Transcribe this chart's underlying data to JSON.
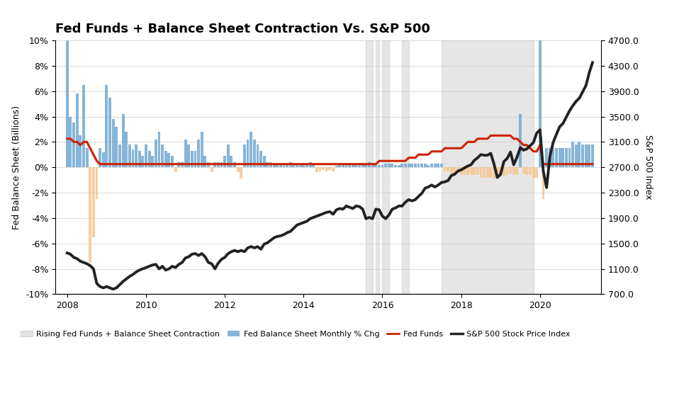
{
  "title": "Fed Funds + Balance Sheet Contraction Vs. S&P 500",
  "ylabel_left": "Fed Balance Sheet (Billions)",
  "ylabel_right": "S&P 500 Index",
  "ylim_left": [
    -0.1,
    0.1
  ],
  "ylim_right": [
    700,
    4700
  ],
  "yticks_left": [
    -0.1,
    -0.08,
    -0.06,
    -0.04,
    -0.02,
    0.0,
    0.02,
    0.04,
    0.06,
    0.08,
    0.1
  ],
  "ytick_labels_left": [
    "-10%",
    "-8%",
    "-6%",
    "-4%",
    "-2%",
    "0%",
    "2%",
    "4%",
    "6%",
    "8%",
    "10%"
  ],
  "yticks_right": [
    700,
    1100,
    1500,
    1900,
    2300,
    2700,
    3100,
    3500,
    3900,
    4300,
    4700
  ],
  "ytick_labels_right": [
    "700.0",
    "1100.0",
    "1500.0",
    "1900.0",
    "2300.0",
    "2700.0",
    "3100.0",
    "3500.0",
    "3900.0",
    "4300.0",
    "4700.0"
  ],
  "color_bars_positive": "#7AADD4",
  "color_bars_negative": "#F5C897",
  "color_fed_funds": "#CC2200",
  "color_sp500": "#222222",
  "color_shading_contraction": "#C8C8C8",
  "background_color": "#FFFFFF",
  "dates": [
    2008.0,
    2008.083,
    2008.167,
    2008.25,
    2008.333,
    2008.417,
    2008.5,
    2008.583,
    2008.667,
    2008.75,
    2008.833,
    2008.917,
    2009.0,
    2009.083,
    2009.167,
    2009.25,
    2009.333,
    2009.417,
    2009.5,
    2009.583,
    2009.667,
    2009.75,
    2009.833,
    2009.917,
    2010.0,
    2010.083,
    2010.167,
    2010.25,
    2010.333,
    2010.417,
    2010.5,
    2010.583,
    2010.667,
    2010.75,
    2010.833,
    2010.917,
    2011.0,
    2011.083,
    2011.167,
    2011.25,
    2011.333,
    2011.417,
    2011.5,
    2011.583,
    2011.667,
    2011.75,
    2011.833,
    2011.917,
    2012.0,
    2012.083,
    2012.167,
    2012.25,
    2012.333,
    2012.417,
    2012.5,
    2012.583,
    2012.667,
    2012.75,
    2012.833,
    2012.917,
    2013.0,
    2013.083,
    2013.167,
    2013.25,
    2013.333,
    2013.417,
    2013.5,
    2013.583,
    2013.667,
    2013.75,
    2013.833,
    2013.917,
    2014.0,
    2014.083,
    2014.167,
    2014.25,
    2014.333,
    2014.417,
    2014.5,
    2014.583,
    2014.667,
    2014.75,
    2014.833,
    2014.917,
    2015.0,
    2015.083,
    2015.167,
    2015.25,
    2015.333,
    2015.417,
    2015.5,
    2015.583,
    2015.667,
    2015.75,
    2015.833,
    2015.917,
    2016.0,
    2016.083,
    2016.167,
    2016.25,
    2016.333,
    2016.417,
    2016.5,
    2016.583,
    2016.667,
    2016.75,
    2016.833,
    2016.917,
    2017.0,
    2017.083,
    2017.167,
    2017.25,
    2017.333,
    2017.417,
    2017.5,
    2017.583,
    2017.667,
    2017.75,
    2017.833,
    2017.917,
    2018.0,
    2018.083,
    2018.167,
    2018.25,
    2018.333,
    2018.417,
    2018.5,
    2018.583,
    2018.667,
    2018.75,
    2018.833,
    2018.917,
    2019.0,
    2019.083,
    2019.167,
    2019.25,
    2019.333,
    2019.417,
    2019.5,
    2019.583,
    2019.667,
    2019.75,
    2019.833,
    2019.917,
    2020.0,
    2020.083,
    2020.167,
    2020.25,
    2020.333,
    2020.417,
    2020.5,
    2020.583,
    2020.667,
    2020.75,
    2020.833,
    2020.917,
    2021.0,
    2021.083,
    2021.167,
    2021.25,
    2021.333
  ],
  "bs_monthly_pct": [
    0.1,
    0.04,
    0.035,
    0.058,
    0.025,
    0.065,
    0.015,
    -0.075,
    -0.055,
    -0.025,
    0.015,
    0.012,
    0.065,
    0.055,
    0.038,
    0.032,
    0.018,
    0.042,
    0.028,
    0.018,
    0.014,
    0.018,
    0.013,
    0.009,
    0.018,
    0.013,
    0.009,
    0.022,
    0.028,
    0.018,
    0.013,
    0.011,
    0.009,
    -0.004,
    0.004,
    0.004,
    0.022,
    0.018,
    0.013,
    0.013,
    0.022,
    0.028,
    0.009,
    0.004,
    -0.004,
    0.004,
    0.004,
    0.004,
    0.009,
    0.018,
    0.009,
    0.004,
    -0.004,
    -0.009,
    0.018,
    0.022,
    0.028,
    0.022,
    0.018,
    0.013,
    0.009,
    0.004,
    0.004,
    0.003,
    0.002,
    0.003,
    0.002,
    0.003,
    0.004,
    0.003,
    0.002,
    0.002,
    0.002,
    0.003,
    0.004,
    0.003,
    -0.004,
    -0.003,
    -0.002,
    -0.003,
    -0.002,
    -0.003,
    0.001,
    0.002,
    0.002,
    0.002,
    0.003,
    0.002,
    0.003,
    0.003,
    0.003,
    0.002,
    0.004,
    0.003,
    0.003,
    0.002,
    0.002,
    0.003,
    0.003,
    0.003,
    0.002,
    0.002,
    0.003,
    0.003,
    0.003,
    0.003,
    0.003,
    0.003,
    0.003,
    0.003,
    0.002,
    0.003,
    0.003,
    0.003,
    0.003,
    -0.003,
    -0.003,
    -0.005,
    -0.005,
    -0.005,
    -0.006,
    -0.006,
    -0.006,
    -0.006,
    -0.006,
    -0.006,
    -0.008,
    -0.008,
    -0.008,
    -0.008,
    -0.009,
    -0.009,
    -0.007,
    -0.007,
    -0.006,
    -0.005,
    -0.006,
    -0.006,
    0.042,
    -0.005,
    -0.006,
    -0.006,
    -0.009,
    -0.008,
    0.1,
    -0.025,
    0.015,
    0.015,
    0.015,
    0.015,
    0.015,
    0.015,
    0.015,
    0.015,
    0.02,
    0.018,
    0.02,
    0.018,
    0.018,
    0.018,
    0.018
  ],
  "fed_funds": [
    2.25,
    2.25,
    2.0,
    2.0,
    1.75,
    2.0,
    2.0,
    1.5,
    1.0,
    0.5,
    0.25,
    0.25,
    0.25,
    0.25,
    0.25,
    0.25,
    0.25,
    0.25,
    0.25,
    0.25,
    0.25,
    0.25,
    0.25,
    0.25,
    0.25,
    0.25,
    0.25,
    0.25,
    0.25,
    0.25,
    0.25,
    0.25,
    0.25,
    0.25,
    0.25,
    0.25,
    0.25,
    0.25,
    0.25,
    0.25,
    0.25,
    0.25,
    0.25,
    0.25,
    0.25,
    0.25,
    0.25,
    0.25,
    0.25,
    0.25,
    0.25,
    0.25,
    0.25,
    0.25,
    0.25,
    0.25,
    0.25,
    0.25,
    0.25,
    0.25,
    0.25,
    0.25,
    0.25,
    0.25,
    0.25,
    0.25,
    0.25,
    0.25,
    0.25,
    0.25,
    0.25,
    0.25,
    0.25,
    0.25,
    0.25,
    0.25,
    0.25,
    0.25,
    0.25,
    0.25,
    0.25,
    0.25,
    0.25,
    0.25,
    0.25,
    0.25,
    0.25,
    0.25,
    0.25,
    0.25,
    0.25,
    0.25,
    0.25,
    0.25,
    0.25,
    0.5,
    0.5,
    0.5,
    0.5,
    0.5,
    0.5,
    0.5,
    0.5,
    0.5,
    0.75,
    0.75,
    0.75,
    1.0,
    1.0,
    1.0,
    1.0,
    1.25,
    1.25,
    1.25,
    1.25,
    1.5,
    1.5,
    1.5,
    1.5,
    1.5,
    1.5,
    1.75,
    2.0,
    2.0,
    2.0,
    2.25,
    2.25,
    2.25,
    2.25,
    2.5,
    2.5,
    2.5,
    2.5,
    2.5,
    2.5,
    2.5,
    2.25,
    2.25,
    2.0,
    1.75,
    1.75,
    1.5,
    1.25,
    1.25,
    1.75,
    0.25,
    0.25,
    0.25,
    0.25,
    0.25,
    0.25,
    0.25,
    0.25,
    0.25,
    0.25,
    0.25,
    0.25,
    0.25,
    0.25,
    0.25,
    0.25
  ],
  "sp500": [
    1350,
    1330,
    1280,
    1260,
    1220,
    1200,
    1180,
    1150,
    1100,
    870,
    820,
    800,
    820,
    800,
    780,
    800,
    850,
    900,
    940,
    980,
    1010,
    1050,
    1080,
    1100,
    1120,
    1140,
    1160,
    1170,
    1100,
    1140,
    1080,
    1100,
    1140,
    1120,
    1170,
    1200,
    1270,
    1290,
    1330,
    1340,
    1310,
    1340,
    1290,
    1200,
    1180,
    1100,
    1190,
    1250,
    1280,
    1340,
    1370,
    1390,
    1370,
    1390,
    1370,
    1430,
    1450,
    1430,
    1450,
    1410,
    1490,
    1510,
    1550,
    1590,
    1610,
    1620,
    1640,
    1670,
    1690,
    1740,
    1790,
    1810,
    1830,
    1850,
    1890,
    1910,
    1930,
    1950,
    1970,
    1990,
    2000,
    1960,
    2030,
    2050,
    2040,
    2090,
    2070,
    2050,
    2090,
    2080,
    2040,
    1890,
    1910,
    1890,
    2040,
    2030,
    1930,
    1890,
    1950,
    2040,
    2060,
    2090,
    2090,
    2150,
    2190,
    2170,
    2190,
    2240,
    2290,
    2370,
    2390,
    2420,
    2390,
    2420,
    2460,
    2470,
    2490,
    2570,
    2590,
    2640,
    2660,
    2690,
    2720,
    2740,
    2810,
    2850,
    2900,
    2890,
    2890,
    2920,
    2750,
    2540,
    2590,
    2790,
    2840,
    2940,
    2740,
    2860,
    3010,
    2970,
    2990,
    3040,
    3090,
    3240,
    3290,
    2640,
    2380,
    2870,
    3090,
    3220,
    3340,
    3390,
    3490,
    3590,
    3670,
    3740,
    3790,
    3890,
    3990,
    4190,
    4350
  ],
  "shading_regions": [
    [
      2015.583,
      2015.75
    ],
    [
      2015.833,
      2015.917
    ],
    [
      2016.0,
      2016.167
    ],
    [
      2016.5,
      2016.667
    ],
    [
      2017.5,
      2019.833
    ]
  ],
  "xticks": [
    2008,
    2010,
    2012,
    2014,
    2016,
    2018,
    2020
  ],
  "xlim": [
    2007.7,
    2021.55
  ],
  "legend_labels": [
    "Rising Fed Funds + Balance Sheet Contraction",
    "Fed Balance Sheet Monthly % Chg",
    "Fed Funds",
    "S&P 500 Stock Price Index"
  ]
}
